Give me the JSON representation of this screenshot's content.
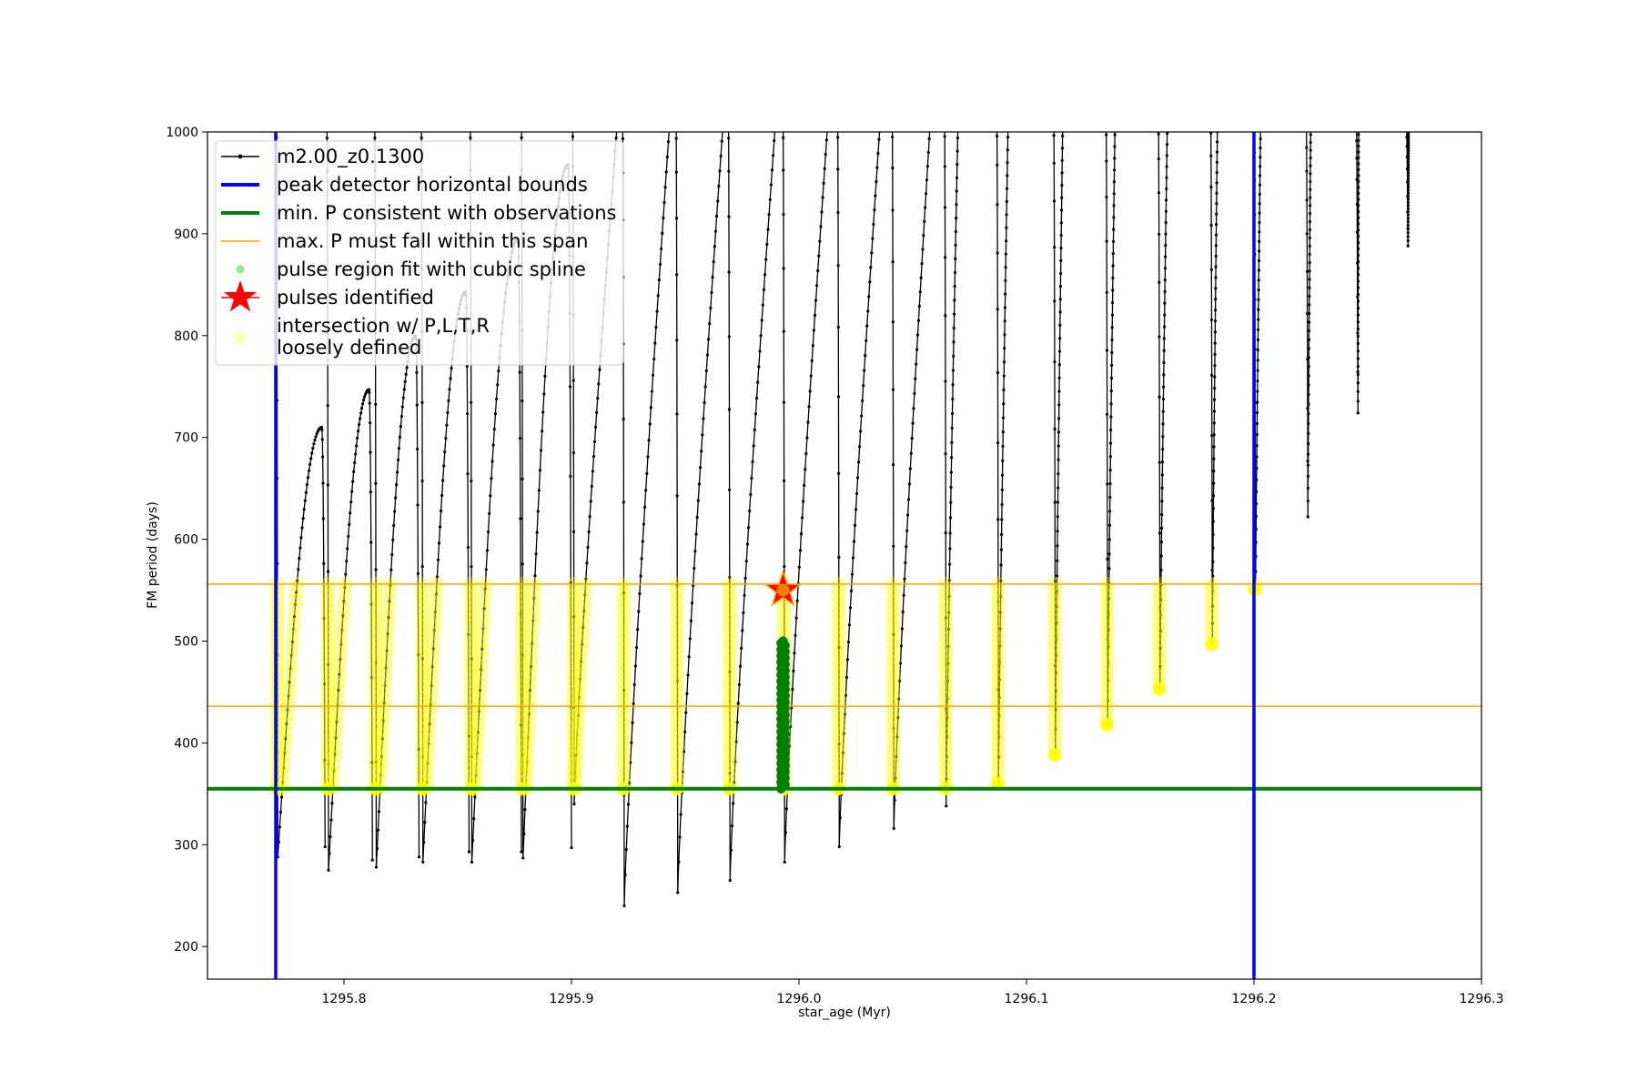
{
  "chart_data": {
    "type": "scatter",
    "xlabel": "star_age (Myr)",
    "ylabel": "FM period (days)",
    "xlim": [
      1295.74,
      1296.3
    ],
    "ylim": [
      168,
      1000
    ],
    "xticks": [
      "1295.8",
      "1295.9",
      "1296.0",
      "1296.1",
      "1296.2",
      "1296.3"
    ],
    "yticks": [
      "200",
      "300",
      "400",
      "500",
      "600",
      "700",
      "800",
      "900",
      "1000"
    ],
    "grid": false,
    "legend_position": "top-left",
    "legend": [
      {
        "label": "m2.00_z0.1300",
        "marker": "line-dot",
        "color": "#000000"
      },
      {
        "label": "peak detector horizontal bounds",
        "marker": "line",
        "color": "#0000ff"
      },
      {
        "label": "min. P consistent with observations",
        "marker": "line",
        "color": "#008000"
      },
      {
        "label": "max. P must fall within this span",
        "marker": "thin-line",
        "color": "#ffa500"
      },
      {
        "label": "pulse region fit with cubic spline",
        "marker": "dot",
        "color": "#90ee90"
      },
      {
        "label": "pulses identified",
        "marker": "star",
        "color": "#ff0000"
      },
      {
        "label": "intersection w/ P,L,T,R",
        "label2": "loosely defined",
        "marker": "circle",
        "color": "#ffff99"
      }
    ],
    "vertical_bounds": [
      1295.77,
      1296.2
    ],
    "min_period_line": 355,
    "max_period_span": [
      436,
      556
    ],
    "colors": {
      "track": "#000000",
      "bounds": "#0000ff",
      "min_line": "#008000",
      "span": "#ffa500",
      "intersection": "#ffff00",
      "spline": "#008000",
      "pulse": "#ff0000"
    },
    "pulse_identified": {
      "x": 1295.993,
      "y": 550
    },
    "spline_fit": {
      "x": 1295.993,
      "y_min": 355,
      "y_max": 500
    },
    "series": [
      {
        "name": "m2.00_z0.1300",
        "cycles": [
          {
            "x0": 1295.7702,
            "x1": 1295.7902,
            "y_min": 288,
            "y_peak": 710
          },
          {
            "x0": 1295.7925,
            "x1": 1295.811,
            "y_min": 275,
            "y_peak": 747
          },
          {
            "x0": 1295.8135,
            "x1": 1295.8315,
            "y_min": 278,
            "y_peak": 800
          },
          {
            "x0": 1295.834,
            "x1": 1295.8535,
            "y_min": 283,
            "y_peak": 843
          },
          {
            "x0": 1295.8555,
            "x1": 1295.8765,
            "y_min": 283,
            "y_peak": 895
          },
          {
            "x0": 1295.878,
            "x1": 1295.8985,
            "y_min": 287,
            "y_peak": 968
          },
          {
            "x0": 1295.9005,
            "x1": 1295.9205,
            "y_min": 340,
            "y_peak": 1000
          },
          {
            "x0": 1295.9225,
            "x1": 1295.9435,
            "y_min": 240,
            "y_peak": 1000
          },
          {
            "x0": 1295.946,
            "x1": 1295.967,
            "y_min": 253,
            "y_peak": 1000
          },
          {
            "x0": 1295.969,
            "x1": 1295.99,
            "y_min": 265,
            "y_peak": 1000
          },
          {
            "x0": 1295.993,
            "x1": 1296.013,
            "y_min": 283,
            "y_peak": 1000
          },
          {
            "x0": 1296.017,
            "x1": 1296.036,
            "y_min": 298,
            "y_peak": 1000
          },
          {
            "x0": 1296.041,
            "x1": 1296.058,
            "y_min": 316,
            "y_peak": 1000
          },
          {
            "x0": 1296.064,
            "x1": 1296.07,
            "y_min": 338,
            "y_peak": 1000
          },
          {
            "x0": 1296.087,
            "x1": 1296.092,
            "y_min": 360,
            "y_peak": 1000
          },
          {
            "x0": 1296.112,
            "x1": 1296.116,
            "y_min": 388,
            "y_peak": 1000
          },
          {
            "x0": 1296.135,
            "x1": 1296.139,
            "y_min": 418,
            "y_peak": 1000
          },
          {
            "x0": 1296.158,
            "x1": 1296.162,
            "y_min": 453,
            "y_peak": 1000
          },
          {
            "x0": 1296.181,
            "x1": 1296.184,
            "y_min": 497,
            "y_peak": 1000
          },
          {
            "x0": 1296.2,
            "x1": 1296.203,
            "y_min": 550,
            "y_peak": 1000
          },
          {
            "x0": 1296.223,
            "x1": 1296.225,
            "y_min": 622,
            "y_peak": 1000
          },
          {
            "x0": 1296.245,
            "x1": 1296.246,
            "y_min": 724,
            "y_peak": 1000
          },
          {
            "x0": 1296.267,
            "x1": 1296.268,
            "y_min": 888,
            "y_peak": 1000
          }
        ]
      }
    ]
  }
}
